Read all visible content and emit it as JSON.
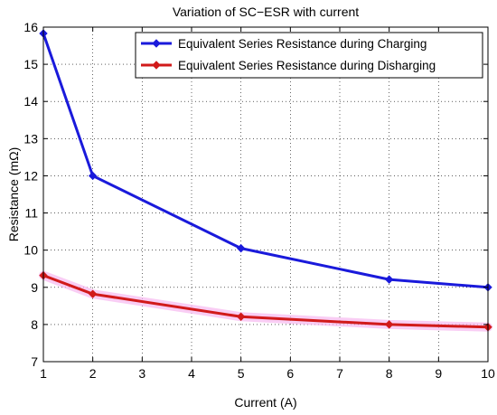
{
  "chart_data": {
    "type": "line",
    "title": "Variation of SC−ESR with current",
    "xlabel": "Current (A)",
    "ylabel": "Resistance (mΩ)",
    "xlim": [
      1,
      10
    ],
    "ylim": [
      7,
      16
    ],
    "xticks": [
      "1",
      "2",
      "3",
      "4",
      "5",
      "6",
      "7",
      "8",
      "9",
      "10"
    ],
    "yticks": [
      "7",
      "8",
      "9",
      "10",
      "11",
      "12",
      "13",
      "14",
      "15",
      "16"
    ],
    "grid": true,
    "legend_position": "top-right",
    "series": [
      {
        "name": "Equivalent Series Resistance during Charging",
        "color": "#1a1adb",
        "x": [
          1,
          2,
          5,
          8,
          10
        ],
        "y": [
          15.83,
          12.0,
          10.05,
          9.21,
          9.0
        ]
      },
      {
        "name": "Equivalent Series Resistance during Disharging",
        "color": "#d11a1a",
        "x": [
          1,
          2,
          5,
          8,
          10
        ],
        "y": [
          9.32,
          8.82,
          8.21,
          8.0,
          7.93
        ]
      }
    ]
  }
}
